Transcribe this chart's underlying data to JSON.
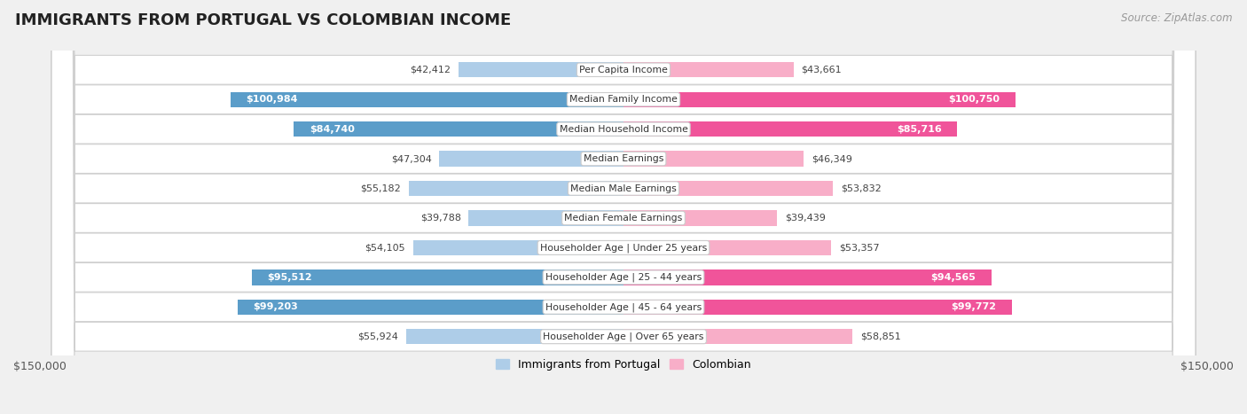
{
  "title": "IMMIGRANTS FROM PORTUGAL VS COLOMBIAN INCOME",
  "source": "Source: ZipAtlas.com",
  "categories": [
    "Per Capita Income",
    "Median Family Income",
    "Median Household Income",
    "Median Earnings",
    "Median Male Earnings",
    "Median Female Earnings",
    "Householder Age | Under 25 years",
    "Householder Age | 25 - 44 years",
    "Householder Age | 45 - 64 years",
    "Householder Age | Over 65 years"
  ],
  "portugal_values": [
    42412,
    100984,
    84740,
    47304,
    55182,
    39788,
    54105,
    95512,
    99203,
    55924
  ],
  "colombian_values": [
    43661,
    100750,
    85716,
    46349,
    53832,
    39439,
    53357,
    94565,
    99772,
    58851
  ],
  "portugal_labels": [
    "$42,412",
    "$100,984",
    "$84,740",
    "$47,304",
    "$55,182",
    "$39,788",
    "$54,105",
    "$95,512",
    "$99,203",
    "$55,924"
  ],
  "colombian_labels": [
    "$43,661",
    "$100,750",
    "$85,716",
    "$46,349",
    "$53,832",
    "$39,439",
    "$53,357",
    "$94,565",
    "$99,772",
    "$58,851"
  ],
  "portugal_color_light": "#aecde8",
  "portugal_color_dark": "#5b9dc9",
  "colombian_color_light": "#f8aec8",
  "colombian_color_dark": "#f0549a",
  "high_threshold": 70000,
  "max_value": 150000,
  "bar_height": 0.52,
  "background_color": "#f0f0f0",
  "row_bg_color": "#ffffff",
  "legend_portugal": "Immigrants from Portugal",
  "legend_colombian": "Colombian",
  "xlabel_left": "$150,000",
  "xlabel_right": "$150,000"
}
